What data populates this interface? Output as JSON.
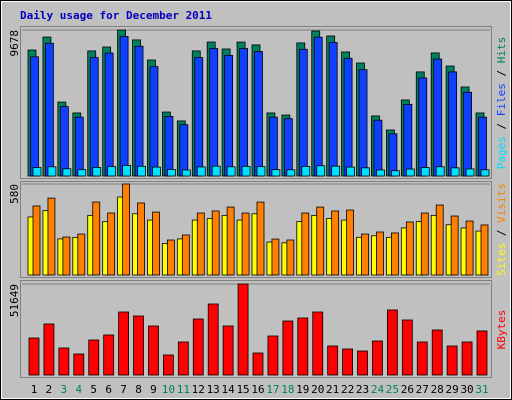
{
  "chart_data": [
    {
      "type": "bar",
      "title": "Daily usage for December 2011",
      "ylim": [
        0,
        9678
      ],
      "yticks": [
        9678
      ],
      "legend_separator": " / ",
      "series": [
        {
          "name": "Pages",
          "color": "#00e0ff",
          "values": [
            560,
            610,
            480,
            420,
            570,
            620,
            700,
            640,
            590,
            430,
            400,
            600,
            650,
            610,
            640,
            620,
            420,
            410,
            630,
            680,
            650,
            590,
            540,
            400,
            350,
            460,
            560,
            610,
            540,
            470,
            410
          ]
        },
        {
          "name": "Files",
          "color": "#1040ff",
          "values": [
            7900,
            8800,
            4600,
            3900,
            7850,
            8150,
            9250,
            8600,
            7250,
            3950,
            3400,
            7850,
            8450,
            8000,
            8450,
            8250,
            3900,
            3800,
            8400,
            9200,
            8850,
            7800,
            7050,
            3700,
            2800,
            4750,
            6500,
            7750,
            6900,
            5550,
            3900
          ]
        },
        {
          "name": "Hits",
          "color": "#008060",
          "values": [
            8350,
            9210,
            4900,
            4180,
            8290,
            8550,
            9678,
            9020,
            7690,
            4240,
            3650,
            8290,
            8880,
            8420,
            8880,
            8690,
            4180,
            4040,
            8820,
            9610,
            9280,
            8220,
            7490,
            3980,
            3050,
            5040,
            6900,
            8160,
            7290,
            5900,
            4180
          ]
        }
      ]
    },
    {
      "type": "bar",
      "ylim": [
        0,
        580
      ],
      "yticks": [
        580
      ],
      "legend_separator": " / ",
      "series": [
        {
          "name": "Sites",
          "color": "#ffff00",
          "values": [
            370,
            410,
            230,
            240,
            380,
            340,
            497,
            390,
            350,
            200,
            230,
            350,
            360,
            380,
            350,
            390,
            210,
            205,
            340,
            380,
            360,
            350,
            240,
            250,
            240,
            300,
            340,
            380,
            320,
            300,
            280
          ]
        },
        {
          "name": "Visits",
          "color": "#ff8000",
          "values": [
            440,
            490,
            242,
            261,
            465,
            395,
            580,
            459,
            401,
            223,
            255,
            395,
            408,
            433,
            395,
            465,
            229,
            223,
            395,
            433,
            408,
            414,
            261,
            274,
            268,
            338,
            395,
            446,
            376,
            344,
            319
          ]
        }
      ]
    },
    {
      "type": "bar",
      "ylim": [
        0,
        51649
      ],
      "yticks": [
        51649
      ],
      "legend_separator": " / ",
      "categories": [
        "1",
        "2",
        "3",
        "4",
        "5",
        "6",
        "7",
        "8",
        "9",
        "10",
        "11",
        "12",
        "13",
        "14",
        "15",
        "16",
        "17",
        "18",
        "19",
        "20",
        "21",
        "22",
        "23",
        "24",
        "25",
        "26",
        "27",
        "28",
        "29",
        "30",
        "31"
      ],
      "category_colors": [
        "#000000",
        "#000000",
        "#008060",
        "#008060",
        "#000000",
        "#000000",
        "#000000",
        "#000000",
        "#000000",
        "#008060",
        "#008060",
        "#000000",
        "#000000",
        "#000000",
        "#000000",
        "#000000",
        "#008060",
        "#008060",
        "#000000",
        "#000000",
        "#000000",
        "#000000",
        "#000000",
        "#008060",
        "#008060",
        "#000000",
        "#000000",
        "#000000",
        "#000000",
        "#000000",
        "#008060"
      ],
      "series": [
        {
          "name": "KBytes",
          "color": "#ff0000",
          "values": [
            21000,
            28950,
            15325,
            11920,
            19866,
            22704,
            35759,
            33489,
            27813,
            11352,
            18731,
            31786,
            40300,
            27813,
            51649,
            12487,
            22136,
            30651,
            32353,
            35759,
            16460,
            14758,
            13622,
            19298,
            36894,
            31218,
            18731,
            25542,
            16460,
            18731,
            25000
          ]
        }
      ]
    }
  ]
}
